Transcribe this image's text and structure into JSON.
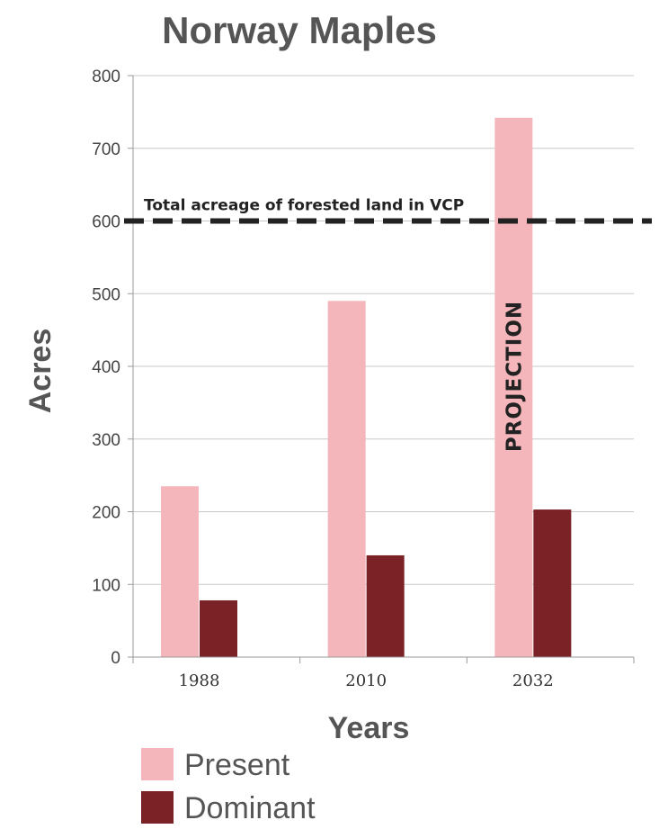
{
  "chart_data": {
    "type": "bar",
    "title": "Norway Maples",
    "xlabel": "Years",
    "ylabel": "Acres",
    "categories": [
      "1988",
      "2010",
      "2032"
    ],
    "series": [
      {
        "name": "Present",
        "values": [
          235,
          490,
          742
        ],
        "color": "#f4b6ba"
      },
      {
        "name": "Dominant",
        "values": [
          78,
          140,
          203
        ],
        "color": "#7b2226"
      }
    ],
    "ylim": [
      0,
      800
    ],
    "yticks": [
      0,
      100,
      200,
      300,
      400,
      500,
      600,
      700,
      800
    ],
    "grid": true,
    "legend_position": "bottom-left",
    "reference_line": {
      "value": 600,
      "label": "Total acreage of forested land in VCP",
      "style": "dashed",
      "color": "#222222"
    },
    "annotations": [
      {
        "text": "PROJECTION",
        "category": "2032",
        "orientation": "vertical"
      }
    ]
  }
}
